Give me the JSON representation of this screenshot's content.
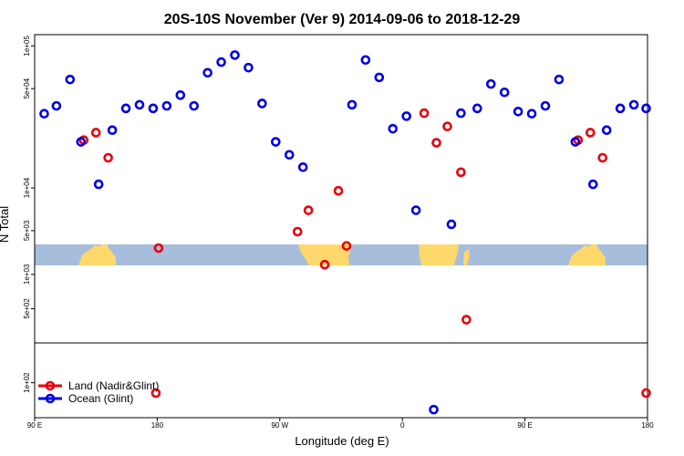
{
  "chart_data": {
    "type": "scatter",
    "title": "20S-10S November (Ver 9)   2014-09-06 to 2018-12-29",
    "xlabel": "Longitude (deg E)",
    "ylabel": "N Total",
    "x_ticks": [
      {
        "pos": 90,
        "label": "90 E"
      },
      {
        "pos": 180,
        "label": "180"
      },
      {
        "pos": 270,
        "label": "90 W"
      },
      {
        "pos": 360,
        "label": "0"
      },
      {
        "pos": 450,
        "label": "90 E"
      },
      {
        "pos": 540,
        "label": "180"
      }
    ],
    "xlim": [
      90,
      540
    ],
    "panels": [
      {
        "name": "upper",
        "scale": "log",
        "ylim": [
          4000,
          120000
        ],
        "y_ticks": [
          {
            "value": 100000,
            "label": "1e+05"
          },
          {
            "value": 50000,
            "label": "5e+04"
          },
          {
            "value": 10000,
            "label": "1e+04"
          },
          {
            "value": 5000,
            "label": "5e+03"
          }
        ]
      },
      {
        "name": "middle",
        "scale": "log",
        "ylim": [
          250,
          1200
        ],
        "y_ticks": [
          {
            "value": 1000,
            "label": "1e+03"
          },
          {
            "value": 500,
            "label": "5e+02"
          }
        ]
      },
      {
        "name": "lower",
        "scale": "log",
        "ylim": [
          70,
          150
        ],
        "y_ticks": [
          {
            "value": 100,
            "label": "1e+02"
          }
        ]
      }
    ],
    "series": [
      {
        "name": "Land (Nadir&Glint)",
        "color": "#e8000b",
        "points": [
          {
            "x": 126,
            "y": 21700,
            "panel": "upper"
          },
          {
            "x": 135,
            "y": 24500,
            "panel": "upper"
          },
          {
            "x": 144,
            "y": 16300,
            "panel": "upper"
          },
          {
            "x": 181,
            "y": 3770,
            "panel": "upper"
          },
          {
            "x": 283,
            "y": 4920,
            "panel": "upper"
          },
          {
            "x": 291,
            "y": 6960,
            "panel": "upper"
          },
          {
            "x": 303,
            "y": 2880,
            "panel": "upper"
          },
          {
            "x": 313,
            "y": 9540,
            "panel": "upper"
          },
          {
            "x": 319,
            "y": 1780,
            "panel": "middle"
          },
          {
            "x": 376,
            "y": 33600,
            "panel": "upper"
          },
          {
            "x": 385,
            "y": 20800,
            "panel": "upper"
          },
          {
            "x": 393,
            "y": 27100,
            "panel": "upper"
          },
          {
            "x": 403,
            "y": 12900,
            "panel": "upper"
          },
          {
            "x": 407,
            "y": 400,
            "panel": "middle"
          },
          {
            "x": 179,
            "y": 90,
            "panel": "lower"
          },
          {
            "x": 489,
            "y": 21700,
            "panel": "upper"
          },
          {
            "x": 498,
            "y": 24500,
            "panel": "upper"
          },
          {
            "x": 507,
            "y": 16300,
            "panel": "upper"
          },
          {
            "x": 539,
            "y": 90,
            "panel": "lower"
          }
        ]
      },
      {
        "name": "Ocean (Glint)",
        "color": "#0000e8",
        "points": [
          {
            "x": 97,
            "y": 33300,
            "panel": "upper"
          },
          {
            "x": 106,
            "y": 37800,
            "panel": "upper"
          },
          {
            "x": 116,
            "y": 58000,
            "panel": "upper"
          },
          {
            "x": 124,
            "y": 21100,
            "panel": "upper"
          },
          {
            "x": 137,
            "y": 10600,
            "panel": "upper"
          },
          {
            "x": 147,
            "y": 25500,
            "panel": "upper"
          },
          {
            "x": 157,
            "y": 36300,
            "panel": "upper"
          },
          {
            "x": 167,
            "y": 38500,
            "panel": "upper"
          },
          {
            "x": 177,
            "y": 36300,
            "panel": "upper"
          },
          {
            "x": 187,
            "y": 37800,
            "panel": "upper"
          },
          {
            "x": 197,
            "y": 45000,
            "panel": "upper"
          },
          {
            "x": 207,
            "y": 37800,
            "panel": "upper"
          },
          {
            "x": 217,
            "y": 64700,
            "panel": "upper"
          },
          {
            "x": 227,
            "y": 76900,
            "panel": "upper"
          },
          {
            "x": 237,
            "y": 86200,
            "panel": "upper"
          },
          {
            "x": 247,
            "y": 70300,
            "panel": "upper"
          },
          {
            "x": 257,
            "y": 39300,
            "panel": "upper"
          },
          {
            "x": 267,
            "y": 21100,
            "panel": "upper"
          },
          {
            "x": 277,
            "y": 17100,
            "panel": "upper"
          },
          {
            "x": 287,
            "y": 14000,
            "panel": "upper"
          },
          {
            "x": 323,
            "y": 38500,
            "panel": "upper"
          },
          {
            "x": 333,
            "y": 79600,
            "panel": "upper"
          },
          {
            "x": 343,
            "y": 60000,
            "panel": "upper"
          },
          {
            "x": 353,
            "y": 26100,
            "panel": "upper"
          },
          {
            "x": 363,
            "y": 32000,
            "panel": "upper"
          },
          {
            "x": 370,
            "y": 6960,
            "panel": "upper"
          },
          {
            "x": 383,
            "y": 76,
            "panel": "lower"
          },
          {
            "x": 396,
            "y": 5540,
            "panel": "upper"
          },
          {
            "x": 403,
            "y": 33600,
            "panel": "upper"
          },
          {
            "x": 415,
            "y": 36300,
            "panel": "upper"
          },
          {
            "x": 425,
            "y": 53900,
            "panel": "upper"
          },
          {
            "x": 435,
            "y": 47100,
            "panel": "upper"
          },
          {
            "x": 445,
            "y": 34500,
            "panel": "upper"
          },
          {
            "x": 455,
            "y": 33300,
            "panel": "upper"
          },
          {
            "x": 465,
            "y": 37800,
            "panel": "upper"
          },
          {
            "x": 475,
            "y": 58000,
            "panel": "upper"
          },
          {
            "x": 487,
            "y": 21100,
            "panel": "upper"
          },
          {
            "x": 500,
            "y": 10600,
            "panel": "upper"
          },
          {
            "x": 510,
            "y": 25500,
            "panel": "upper"
          },
          {
            "x": 520,
            "y": 36300,
            "panel": "upper"
          },
          {
            "x": 530,
            "y": 38500,
            "panel": "upper"
          },
          {
            "x": 539,
            "y": 36300,
            "panel": "upper"
          }
        ]
      }
    ],
    "legend": {
      "placement": "bottom-left",
      "entries": [
        "Land (Nadir&Glint)",
        "Ocean (Glint)"
      ]
    },
    "map_colors": {
      "ocean": "#a6bddb",
      "land": "#ffd86b"
    }
  }
}
